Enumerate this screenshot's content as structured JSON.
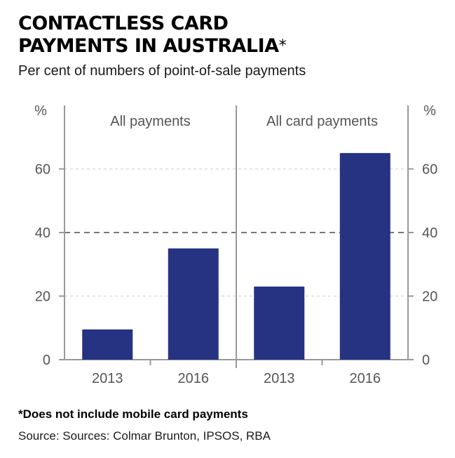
{
  "title_line1": "CONTACTLESS CARD",
  "title_line2": "PAYMENTS IN AUSTRALIA",
  "title_asterisk": "*",
  "subtitle": "Per cent of numbers of point-of-sale payments",
  "footnote": "*Does not include mobile card payments",
  "source": "Source: Sources: Colmar Brunton, IPSOS, RBA",
  "colors": {
    "bar": "#263282",
    "axis": "#999999",
    "text": "#555555"
  },
  "chart_data": {
    "type": "bar",
    "y_unit": "%",
    "ylim": [
      0,
      80
    ],
    "yticks": [
      0,
      20,
      40,
      60
    ],
    "grid": "dashed",
    "panels": [
      {
        "title": "All payments",
        "categories": [
          "2013",
          "2016"
        ],
        "values": [
          9.5,
          35
        ]
      },
      {
        "title": "All card payments",
        "categories": [
          "2013",
          "2016"
        ],
        "values": [
          23,
          65
        ]
      }
    ]
  }
}
